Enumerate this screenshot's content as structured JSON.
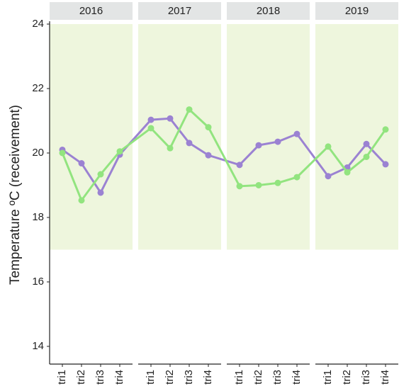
{
  "chart_data": {
    "type": "line",
    "ylabel": "Temperature ºC (receivement)",
    "facets": [
      "2016",
      "2017",
      "2018",
      "2019"
    ],
    "categories": [
      "tri1",
      "tri2",
      "tri3",
      "tri4",
      "tri1",
      "tri2",
      "tri3",
      "tri4",
      "tri1",
      "tri2",
      "tri3",
      "tri4",
      "tri1",
      "tri2",
      "tri3",
      "tri4"
    ],
    "series": [
      {
        "color": "#9b82d2",
        "values": [
          20.1,
          19.68,
          18.77,
          19.95,
          21.03,
          21.07,
          20.31,
          19.93,
          19.63,
          20.24,
          20.35,
          20.59,
          19.28,
          19.55,
          20.28,
          19.65
        ]
      },
      {
        "color": "#92e47f",
        "values": [
          20.0,
          18.53,
          19.34,
          20.05,
          20.77,
          20.15,
          21.35,
          20.8,
          18.97,
          19.0,
          19.07,
          19.25,
          20.2,
          19.4,
          19.88,
          20.73
        ]
      }
    ],
    "band": [
      17,
      24
    ],
    "band_color": "#eef6dd",
    "ylim": [
      13.45,
      24
    ],
    "yticks": [
      14,
      16,
      18,
      20,
      22,
      24
    ]
  }
}
